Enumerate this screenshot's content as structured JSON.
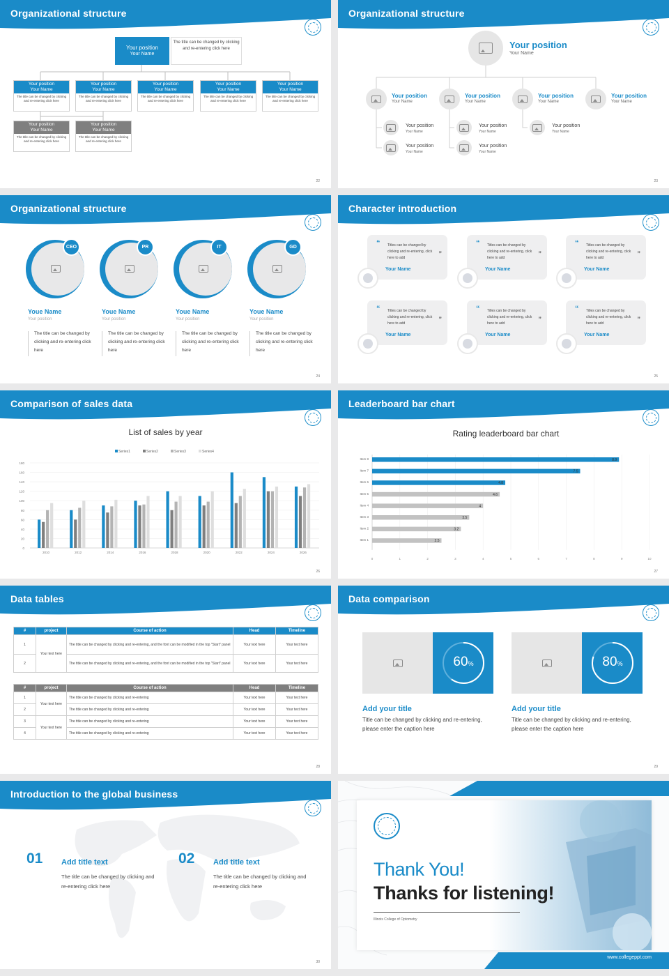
{
  "slides": {
    "s22": {
      "title": "Organizational structure",
      "page": "22",
      "top": {
        "position": "Your position",
        "name": "Your Name",
        "note": "The title can be changed by clicking and re-entering click here"
      },
      "row1": [
        {
          "position": "Your position",
          "name": "Your Name",
          "text": "The title can be changed by clicking and re-entering click here"
        },
        {
          "position": "Your position",
          "name": "Your Name",
          "text": "The title can be changed by clicking and re-entering click here"
        },
        {
          "position": "Your position",
          "name": "Your Name",
          "text": "The title can be changed by clicking and re-entering click here"
        },
        {
          "position": "Your position",
          "name": "Your Name",
          "text": "The title can be changed by clicking and re-entering click here"
        },
        {
          "position": "Your position",
          "name": "Your Name",
          "text": "The title can be changed by clicking and re-entering click here"
        }
      ],
      "row2": [
        {
          "position": "Your position",
          "name": "Your Name",
          "text": "The title can be changed by clicking and re-entering click here"
        },
        {
          "position": "Your position",
          "name": "Your Name",
          "text": "The title can be changed by clicking and re-entering click here"
        }
      ]
    },
    "s23": {
      "title": "Organizational structure",
      "page": "23",
      "top": {
        "position": "Your position",
        "name": "Your Name"
      },
      "mid": [
        {
          "position": "Your position",
          "name": "Your Name"
        },
        {
          "position": "Your position",
          "name": "Your Name"
        },
        {
          "position": "Your position",
          "name": "Your Name"
        },
        {
          "position": "Your position",
          "name": "Your Name"
        }
      ],
      "low": [
        {
          "position": "Your position",
          "name": "Your Name"
        },
        {
          "position": "Your position",
          "name": "Your Name"
        },
        {
          "position": "Your position",
          "name": "Your Name"
        },
        {
          "position": "Your position",
          "name": "Your Name"
        },
        {
          "position": "Your position",
          "name": "Your Name"
        }
      ]
    },
    "s24": {
      "title": "Organizational structure",
      "page": "24",
      "people": [
        {
          "badge": "CEO",
          "name": "Youe Name",
          "position": "Your position",
          "text": "The title can be changed by clicking and re-entering click here"
        },
        {
          "badge": "PR",
          "name": "Youe Name",
          "position": "Your position",
          "text": "The title can be changed by clicking and re-entering click here"
        },
        {
          "badge": "IT",
          "name": "Youe Name",
          "position": "Your position",
          "text": "The title can be changed by clicking and re-entering click here"
        },
        {
          "badge": "GD",
          "name": "Youe Name",
          "position": "Your position",
          "text": "The title can be changed by clicking and re-entering click here"
        }
      ]
    },
    "s25": {
      "title": "Character introduction",
      "page": "25",
      "cards": [
        {
          "text": "Titles can be changed by clicking and re-entering, click here to add",
          "name": "Your Name"
        },
        {
          "text": "Titles can be changed by clicking and re-entering, click here to add",
          "name": "Your Name"
        },
        {
          "text": "Titles can be changed by clicking and re-entering, click here to add",
          "name": "Your Name"
        },
        {
          "text": "Titles can be changed by clicking and re-entering, click here to add",
          "name": "Your Name"
        },
        {
          "text": "Titles can be changed by clicking and re-entering, click here to add",
          "name": "Your Name"
        },
        {
          "text": "Titles can be changed by clicking and re-entering, click here to add",
          "name": "Your Name"
        }
      ]
    },
    "s26": {
      "title": "Comparison of sales data",
      "page": "26"
    },
    "s27": {
      "title": "Leaderboard bar chart",
      "page": "27"
    },
    "s28": {
      "title": "Data tables",
      "page": "28",
      "t1": {
        "headers": [
          "#",
          "project",
          "Course of action",
          "Head",
          "Timeline"
        ],
        "project": "Your text here",
        "rows": [
          {
            "n": "1",
            "action": "The title can be changed by clicking and re-entering, and the font can be modified in the top \"Start\" panel",
            "head": "Your text here",
            "time": "Your text here"
          },
          {
            "n": "2",
            "action": "The title can be changed by clicking and re-entering, and the font can be modified in the top \"Start\" panel",
            "head": "Your text here",
            "time": "Your text here"
          }
        ]
      },
      "t2": {
        "headers": [
          "#",
          "project",
          "Course of action",
          "Head",
          "Timeline"
        ],
        "project_a": "Your text here",
        "project_b": "Your text here",
        "rows": [
          {
            "n": "1",
            "action": "The title can be changed by clicking and re-entering",
            "head": "Your text here",
            "time": "Your text here"
          },
          {
            "n": "2",
            "action": "The title can be changed by clicking and re-entering",
            "head": "Your text here",
            "time": "Your text here"
          },
          {
            "n": "3",
            "action": "The title can be changed by clicking and re-entering",
            "head": "Your text here",
            "time": "Your text here"
          },
          {
            "n": "4",
            "action": "The title can be changed by clicking and re-entering",
            "head": "Your text here",
            "time": "Your text here"
          }
        ]
      }
    },
    "s29": {
      "title": "Data comparison",
      "page": "29",
      "items": [
        {
          "value": "60",
          "unit": "%",
          "ratio": 0.6,
          "title": "Add your title",
          "text": "Title can be changed by clicking and re-entering, please enter the caption here"
        },
        {
          "value": "80",
          "unit": "%",
          "ratio": 0.8,
          "title": "Add your title",
          "text": "Title can be changed by clicking and re-entering, please enter the caption here"
        }
      ]
    },
    "s30": {
      "title": "Introduction to the global business",
      "page": "30",
      "items": [
        {
          "num": "01",
          "title": "Add title text",
          "text": "The title can be changed by clicking and re-entering click here"
        },
        {
          "num": "02",
          "title": "Add title text",
          "text": "The title can be changed by clicking and re-entering click here"
        }
      ]
    },
    "s31": {
      "thank": "Thank You!",
      "listening": "Thanks for listening!",
      "college": "Illinois College of Optometry",
      "url": "www.collegeppt.com"
    }
  },
  "chart_data": [
    {
      "type": "bar",
      "title": "List of sales by year",
      "categories": [
        "2010",
        "2012",
        "2014",
        "2016",
        "2018",
        "2020",
        "2022",
        "2024",
        "2026"
      ],
      "series": [
        {
          "name": "Series1",
          "color": "#1a8bc8",
          "values": [
            60,
            80,
            90,
            100,
            120,
            110,
            160,
            150,
            130
          ]
        },
        {
          "name": "Series2",
          "color": "#7f7f7f",
          "values": [
            55,
            60,
            75,
            90,
            80,
            90,
            95,
            120,
            110
          ]
        },
        {
          "name": "Series3",
          "color": "#b3b3b3",
          "values": [
            80,
            85,
            88,
            92,
            98,
            98,
            110,
            120,
            128
          ]
        },
        {
          "name": "Series4",
          "color": "#dedede",
          "values": [
            95,
            100,
            102,
            110,
            110,
            120,
            125,
            130,
            135
          ]
        }
      ],
      "ylim": [
        0,
        180
      ],
      "yticks": [
        "0",
        "20",
        "40",
        "60",
        "80",
        "100",
        "120",
        "140",
        "160",
        "180"
      ],
      "legend": "top",
      "grid": true
    },
    {
      "type": "bar",
      "orientation": "horizontal",
      "title": "Rating leaderboard bar chart",
      "categories": [
        "Item 8",
        "Item 7",
        "Item 6",
        "Item 5",
        "Item 4",
        "Item 3",
        "Item 2",
        "Item 1"
      ],
      "values": [
        8.9,
        7.5,
        4.8,
        4.6,
        4,
        3.5,
        3.2,
        2.5
      ],
      "labels": [
        "8.9",
        "7.5",
        "4.8",
        "4.6",
        "4",
        "3.5",
        "3.2",
        "2.5"
      ],
      "colors": [
        "#1a8bc8",
        "#1a8bc8",
        "#1a8bc8",
        "#c2c2c2",
        "#c2c2c2",
        "#c2c2c2",
        "#c2c2c2",
        "#c2c2c2"
      ],
      "xlim": [
        0,
        10
      ],
      "xticks": [
        "0",
        "1",
        "2",
        "3",
        "4",
        "5",
        "6",
        "7",
        "8",
        "9",
        "10"
      ],
      "grid": true
    }
  ]
}
